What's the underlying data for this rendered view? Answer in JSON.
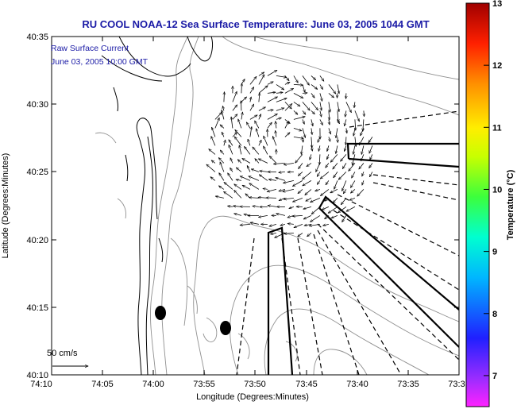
{
  "chart_data": {
    "type": "vector-field-map",
    "title": "RU COOL  NOAA-12  Sea Surface Temperature:  June 03, 2005 1044 GMT",
    "xlabel": "Longitude (Degrees:Minutes)",
    "ylabel": "Latitude (Degrees:Minutes)",
    "x_tick_labels": [
      "74:10",
      "74:05",
      "74:00",
      "73:55",
      "73:50",
      "73:45",
      "73:40",
      "73:35",
      "73:3"
    ],
    "y_tick_labels": [
      "40:10",
      "40:15",
      "40:20",
      "40:25",
      "40:30",
      "40:35"
    ],
    "xlim_minutes_west": [
      4450,
      4410
    ],
    "ylim_minutes_north": [
      2410,
      2435
    ],
    "annotation_lines": [
      "Raw Surface Current",
      "June 03, 2005 10:00 GMT"
    ],
    "scale_arrow_label": "50 cm/s",
    "colorbar": {
      "label": "Temperature (°C)",
      "ticks": [
        "7",
        "8",
        "9",
        "10",
        "11",
        "12",
        "13"
      ],
      "range": [
        6.5,
        13
      ]
    },
    "stations": [
      {
        "lon_min": 4438.8,
        "lat_min": 2414.6
      },
      {
        "lon_min": 4432.2,
        "lat_min": 2413.5
      }
    ],
    "vector_field": {
      "center": {
        "lon_min": 4426.5,
        "lat_min": 2426.5
      },
      "radius_min": 8.3,
      "mean_u_cm_s": -12,
      "mean_v_cm_s": -7,
      "rotation": "cyclonic"
    }
  },
  "colors": {
    "title": "#1a1aa6",
    "annotation": "#1a1aa6",
    "map_lines": "#000000",
    "bathymetry": "#909090"
  }
}
